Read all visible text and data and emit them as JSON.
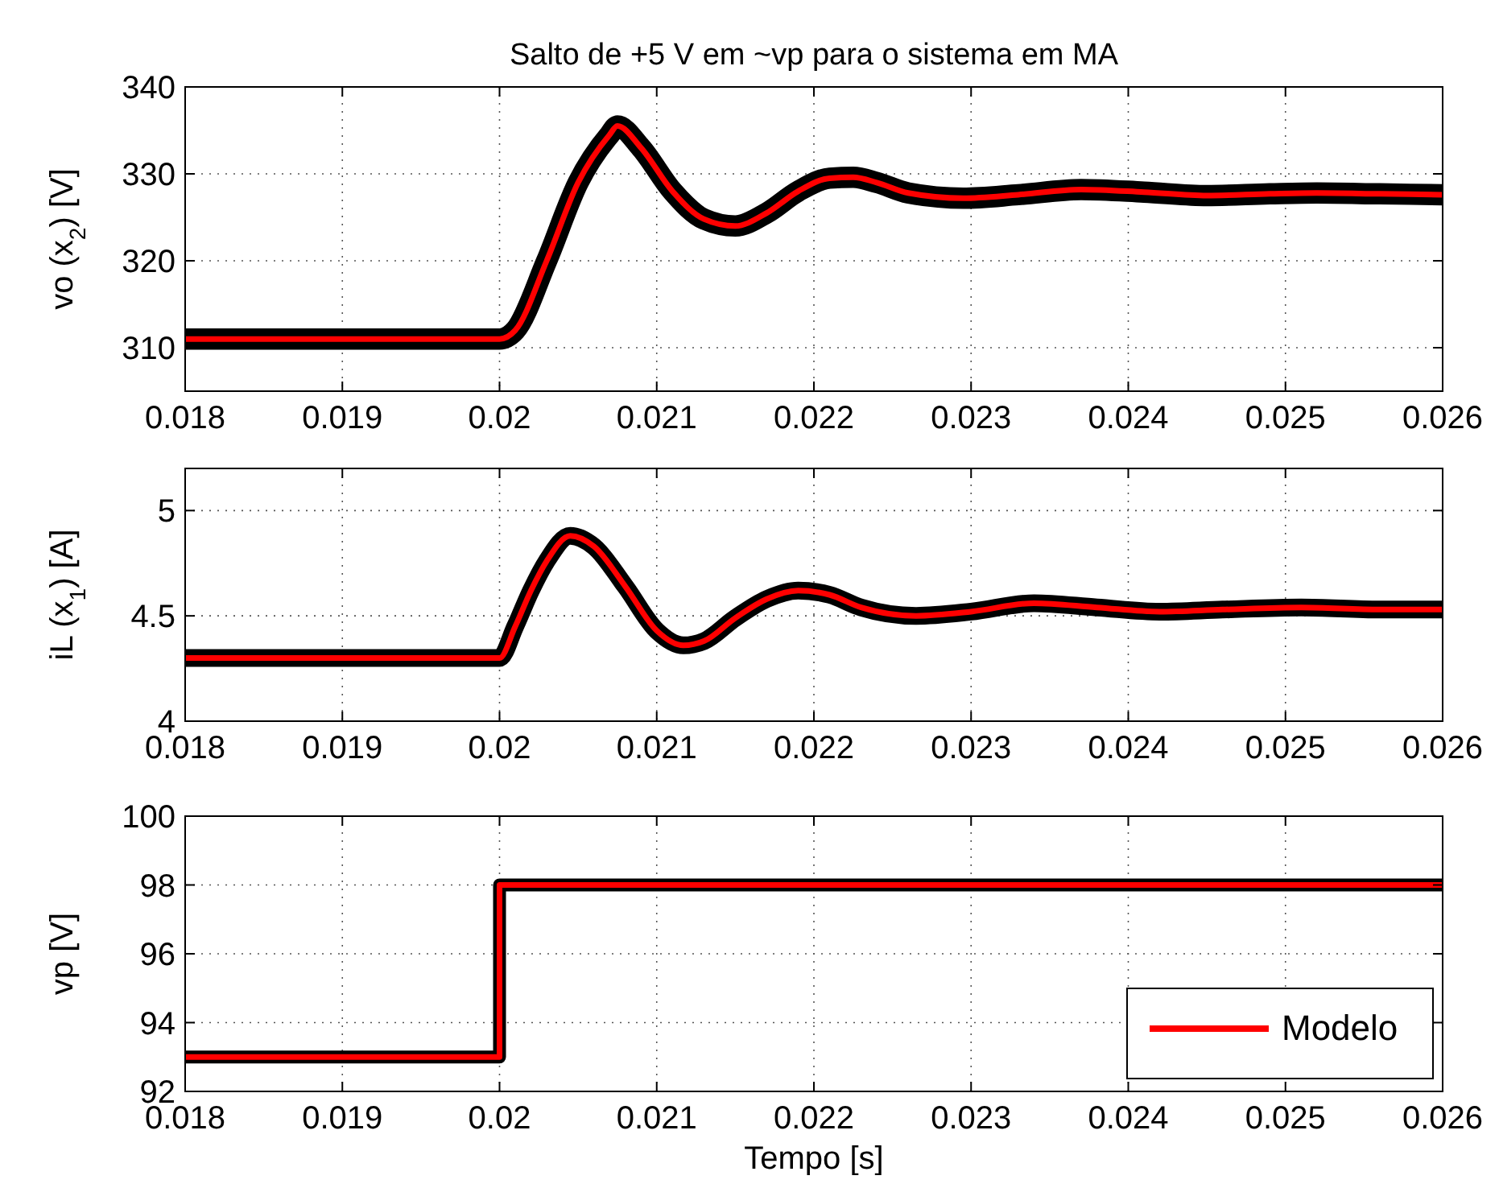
{
  "chart_data": [
    {
      "type": "line",
      "title": "Salto de +5 V em ~vp para o sistema em MA",
      "ylabel": "vo (x$_{2}$) [V]",
      "xlim": [
        0.018,
        0.026
      ],
      "xticks": [
        0.018,
        0.019,
        0.02,
        0.021,
        0.022,
        0.023,
        0.024,
        0.025,
        0.026
      ],
      "ylim": [
        305,
        340
      ],
      "yticks": [
        310,
        320,
        330,
        340
      ],
      "grid": true,
      "x": [
        0.018,
        0.019,
        0.02,
        0.0201,
        0.0203,
        0.0205,
        0.0207,
        0.02075,
        0.0209,
        0.0211,
        0.0213,
        0.0215,
        0.0217,
        0.0219,
        0.0221,
        0.02225,
        0.0224,
        0.0226,
        0.02295,
        0.0233,
        0.0237,
        0.0241,
        0.0245,
        0.0249,
        0.0252,
        0.0256,
        0.026
      ],
      "series": [
        {
          "color": "#000000",
          "values": [
            311,
            311,
            311,
            312,
            320,
            329,
            334.5,
            335.5,
            333,
            328,
            324.8,
            324,
            325.5,
            328,
            329.5,
            329.6,
            329,
            327.8,
            327.2,
            327.6,
            328.2,
            327.9,
            327.5,
            327.7,
            327.8,
            327.7,
            327.6
          ]
        },
        {
          "color": "#ff0000",
          "values": [
            311,
            311,
            311,
            312,
            320,
            329,
            334.5,
            335.5,
            333,
            328,
            324.8,
            324,
            325.5,
            328,
            329.5,
            329.6,
            329,
            327.8,
            327.2,
            327.6,
            328.2,
            327.9,
            327.5,
            327.7,
            327.8,
            327.7,
            327.6
          ]
        }
      ]
    },
    {
      "type": "line",
      "ylabel": "iL (x$_{1}$) [A]",
      "xlim": [
        0.018,
        0.026
      ],
      "xticks": [
        0.018,
        0.019,
        0.02,
        0.021,
        0.022,
        0.023,
        0.024,
        0.025,
        0.026
      ],
      "ylim": [
        4,
        5.2
      ],
      "yticks": [
        4,
        4.5,
        5
      ],
      "grid": true,
      "x": [
        0.018,
        0.019,
        0.02,
        0.0201,
        0.0202,
        0.0203,
        0.02045,
        0.0206,
        0.0208,
        0.021,
        0.02117,
        0.0213,
        0.0215,
        0.0217,
        0.0219,
        0.0221,
        0.0223,
        0.02265,
        0.023,
        0.0234,
        0.0238,
        0.0242,
        0.0246,
        0.0251,
        0.0256,
        0.026
      ],
      "series": [
        {
          "color": "#000000",
          "values": [
            4.3,
            4.3,
            4.3,
            4.45,
            4.62,
            4.76,
            4.88,
            4.83,
            4.64,
            4.43,
            4.36,
            4.38,
            4.49,
            4.58,
            4.62,
            4.6,
            4.54,
            4.5,
            4.52,
            4.56,
            4.54,
            4.52,
            4.53,
            4.54,
            4.53,
            4.53
          ]
        },
        {
          "color": "#ff0000",
          "values": [
            4.3,
            4.3,
            4.3,
            4.45,
            4.62,
            4.76,
            4.88,
            4.83,
            4.64,
            4.43,
            4.36,
            4.38,
            4.49,
            4.58,
            4.62,
            4.6,
            4.54,
            4.5,
            4.52,
            4.56,
            4.54,
            4.52,
            4.53,
            4.54,
            4.53,
            4.53
          ]
        }
      ]
    },
    {
      "type": "step",
      "ylabel": "vp [V]",
      "xlabel": "Tempo [s]",
      "xlim": [
        0.018,
        0.026
      ],
      "xticks": [
        0.018,
        0.019,
        0.02,
        0.021,
        0.022,
        0.023,
        0.024,
        0.025,
        0.026
      ],
      "ylim": [
        92,
        100
      ],
      "yticks": [
        92,
        94,
        96,
        98,
        100
      ],
      "grid": true,
      "legend": "bottom right",
      "x": [
        0.018,
        0.02,
        0.026
      ],
      "series": [
        {
          "color": "#000000",
          "values": [
            93,
            98,
            98
          ]
        },
        {
          "name": "Modelo",
          "color": "#ff0000",
          "values": [
            93,
            98,
            98
          ]
        }
      ]
    }
  ]
}
